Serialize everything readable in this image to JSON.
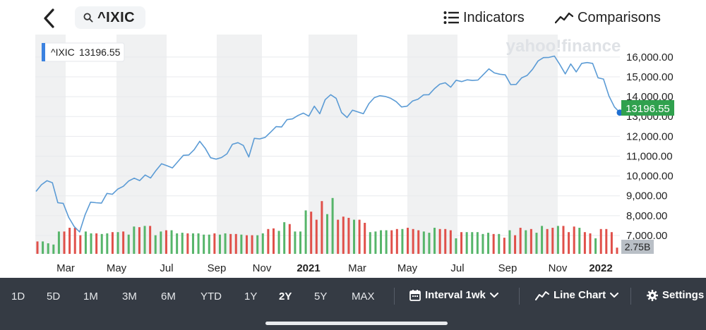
{
  "header": {
    "search_text": "^IXIC",
    "indicators_label": "Indicators",
    "comparisons_label": "Comparisons"
  },
  "icons": {
    "back": "chevron-left-icon",
    "search": "search-icon",
    "indicators": "list-icon",
    "comparisons": "line-chart-icon",
    "interval": "calendar-icon",
    "chart_type": "line-chart-icon",
    "settings": "gear-icon"
  },
  "chart_data": {
    "type": "line",
    "watermark": "yahoo!finance",
    "tooltip": {
      "symbol": "^IXIC",
      "value": "13196.55"
    },
    "last_price_label": "13196.55",
    "volume_label": "2.75B",
    "y_ticks": [
      "16,000.00",
      "15,000.00",
      "14,000.00",
      "13,000.00",
      "12,000.00",
      "11,000.00",
      "10,000.00",
      "9,000.00",
      "8,000.00",
      "7,000.00"
    ],
    "ylim": [
      6500,
      16600
    ],
    "x_labels": [
      "Mar",
      "May",
      "Jul",
      "Sep",
      "Nov",
      "2021",
      "Mar",
      "May",
      "Jul",
      "Sep",
      "Nov",
      "2022"
    ],
    "price_series": [
      9220,
      9560,
      9760,
      9660,
      8650,
      8620,
      7910,
      7450,
      7180,
      8050,
      8680,
      8650,
      8630,
      9120,
      9080,
      9340,
      9480,
      9750,
      9890,
      9770,
      10050,
      9900,
      10280,
      10620,
      10520,
      10410,
      10730,
      11040,
      11060,
      11330,
      11750,
      11400,
      10920,
      10850,
      10930,
      11120,
      11600,
      11680,
      11540,
      10960,
      11900,
      11870,
      11950,
      12210,
      12490,
      12470,
      12840,
      12880,
      13050,
      13170,
      13020,
      13520,
      13140,
      13850,
      14100,
      13920,
      13200,
      12950,
      13320,
      13230,
      13140,
      13650,
      13950,
      14050,
      14010,
      13920,
      13750,
      13480,
      13520,
      13780,
      13870,
      14090,
      14100,
      14400,
      14630,
      14700,
      14480,
      14830,
      14760,
      14850,
      14820,
      14840,
      15120,
      15400,
      15200,
      15130,
      15100,
      14610,
      14620,
      14950,
      15070,
      15380,
      15800,
      15970,
      15980,
      16050,
      15620,
      15150,
      15650,
      15250,
      15680,
      15720,
      15680,
      14950,
      14890,
      14040,
      13480,
      13196
    ],
    "volume_series": [
      {
        "v": 0.2,
        "c": "red"
      },
      {
        "v": 0.2,
        "c": "green"
      },
      {
        "v": 0.17,
        "c": "green"
      },
      {
        "v": 0.15,
        "c": "green"
      },
      {
        "v": 0.36,
        "c": "green"
      },
      {
        "v": 0.36,
        "c": "red"
      },
      {
        "v": 0.42,
        "c": "red"
      },
      {
        "v": 0.42,
        "c": "red"
      },
      {
        "v": 0.3,
        "c": "red"
      },
      {
        "v": 0.36,
        "c": "green"
      },
      {
        "v": 0.33,
        "c": "green"
      },
      {
        "v": 0.33,
        "c": "red"
      },
      {
        "v": 0.32,
        "c": "green"
      },
      {
        "v": 0.33,
        "c": "green"
      },
      {
        "v": 0.35,
        "c": "red"
      },
      {
        "v": 0.35,
        "c": "green"
      },
      {
        "v": 0.36,
        "c": "red"
      },
      {
        "v": 0.31,
        "c": "green"
      },
      {
        "v": 0.44,
        "c": "green"
      },
      {
        "v": 0.43,
        "c": "red"
      },
      {
        "v": 0.45,
        "c": "green"
      },
      {
        "v": 0.45,
        "c": "red"
      },
      {
        "v": 0.3,
        "c": "green"
      },
      {
        "v": 0.36,
        "c": "green"
      },
      {
        "v": 0.38,
        "c": "red"
      },
      {
        "v": 0.38,
        "c": "green"
      },
      {
        "v": 0.33,
        "c": "green"
      },
      {
        "v": 0.34,
        "c": "green"
      },
      {
        "v": 0.33,
        "c": "red"
      },
      {
        "v": 0.33,
        "c": "green"
      },
      {
        "v": 0.33,
        "c": "green"
      },
      {
        "v": 0.31,
        "c": "green"
      },
      {
        "v": 0.31,
        "c": "green"
      },
      {
        "v": 0.33,
        "c": "red"
      },
      {
        "v": 0.31,
        "c": "green"
      },
      {
        "v": 0.33,
        "c": "green"
      },
      {
        "v": 0.32,
        "c": "red"
      },
      {
        "v": 0.32,
        "c": "red"
      },
      {
        "v": 0.31,
        "c": "green"
      },
      {
        "v": 0.3,
        "c": "red"
      },
      {
        "v": 0.3,
        "c": "red"
      },
      {
        "v": 0.3,
        "c": "green"
      },
      {
        "v": 0.33,
        "c": "green"
      },
      {
        "v": 0.4,
        "c": "red"
      },
      {
        "v": 0.41,
        "c": "red"
      },
      {
        "v": 0.37,
        "c": "green"
      },
      {
        "v": 0.51,
        "c": "green"
      },
      {
        "v": 0.48,
        "c": "red"
      },
      {
        "v": 0.36,
        "c": "green"
      },
      {
        "v": 0.36,
        "c": "green"
      },
      {
        "v": 0.7,
        "c": "green"
      },
      {
        "v": 0.68,
        "c": "red"
      },
      {
        "v": 0.55,
        "c": "red"
      },
      {
        "v": 0.85,
        "c": "red"
      },
      {
        "v": 0.64,
        "c": "green"
      },
      {
        "v": 0.9,
        "c": "green"
      },
      {
        "v": 0.55,
        "c": "red"
      },
      {
        "v": 0.6,
        "c": "red"
      },
      {
        "v": 0.58,
        "c": "red"
      },
      {
        "v": 0.55,
        "c": "green"
      },
      {
        "v": 0.55,
        "c": "red"
      },
      {
        "v": 0.5,
        "c": "red"
      },
      {
        "v": 0.35,
        "c": "green"
      },
      {
        "v": 0.36,
        "c": "green"
      },
      {
        "v": 0.38,
        "c": "green"
      },
      {
        "v": 0.38,
        "c": "green"
      },
      {
        "v": 0.38,
        "c": "red"
      },
      {
        "v": 0.4,
        "c": "red"
      },
      {
        "v": 0.4,
        "c": "green"
      },
      {
        "v": 0.42,
        "c": "red"
      },
      {
        "v": 0.4,
        "c": "red"
      },
      {
        "v": 0.38,
        "c": "red"
      },
      {
        "v": 0.36,
        "c": "green"
      },
      {
        "v": 0.34,
        "c": "green"
      },
      {
        "v": 0.42,
        "c": "green"
      },
      {
        "v": 0.4,
        "c": "red"
      },
      {
        "v": 0.4,
        "c": "red"
      },
      {
        "v": 0.38,
        "c": "red"
      },
      {
        "v": 0.25,
        "c": "green"
      },
      {
        "v": 0.35,
        "c": "red"
      },
      {
        "v": 0.35,
        "c": "green"
      },
      {
        "v": 0.35,
        "c": "green"
      },
      {
        "v": 0.35,
        "c": "green"
      },
      {
        "v": 0.32,
        "c": "green"
      },
      {
        "v": 0.34,
        "c": "green"
      },
      {
        "v": 0.32,
        "c": "red"
      },
      {
        "v": 0.32,
        "c": "green"
      },
      {
        "v": 0.26,
        "c": "red"
      },
      {
        "v": 0.38,
        "c": "green"
      },
      {
        "v": 0.3,
        "c": "red"
      },
      {
        "v": 0.42,
        "c": "red"
      },
      {
        "v": 0.38,
        "c": "green"
      },
      {
        "v": 0.4,
        "c": "red"
      },
      {
        "v": 0.34,
        "c": "green"
      },
      {
        "v": 0.45,
        "c": "green"
      },
      {
        "v": 0.4,
        "c": "red"
      },
      {
        "v": 0.42,
        "c": "red"
      },
      {
        "v": 0.45,
        "c": "green"
      },
      {
        "v": 0.45,
        "c": "red"
      },
      {
        "v": 0.35,
        "c": "red"
      },
      {
        "v": 0.44,
        "c": "red"
      },
      {
        "v": 0.42,
        "c": "green"
      },
      {
        "v": 0.35,
        "c": "red"
      },
      {
        "v": 0.33,
        "c": "red"
      },
      {
        "v": 0.25,
        "c": "green"
      },
      {
        "v": 0.4,
        "c": "red"
      },
      {
        "v": 0.4,
        "c": "red"
      },
      {
        "v": 0.35,
        "c": "red"
      },
      {
        "v": 0.1,
        "c": "red"
      }
    ],
    "colors": {
      "line": "#5b9bd5",
      "up_volume": "#56b56a",
      "down_volume": "#e0504a",
      "last_price_bg": "#30a14e",
      "volume_label_bg": "#b9bfc6",
      "grid_band": "#f0f1f2"
    }
  },
  "toolbar": {
    "ranges": [
      {
        "label": "1D",
        "active": false
      },
      {
        "label": "5D",
        "active": false
      },
      {
        "label": "1M",
        "active": false
      },
      {
        "label": "3M",
        "active": false
      },
      {
        "label": "6M",
        "active": false
      },
      {
        "label": "YTD",
        "active": false
      },
      {
        "label": "1Y",
        "active": false
      },
      {
        "label": "2Y",
        "active": true
      },
      {
        "label": "5Y",
        "active": false
      },
      {
        "label": "MAX",
        "active": false
      }
    ],
    "interval_label": "Interval 1wk",
    "chart_type_label": "Line Chart",
    "settings_label": "Settings"
  }
}
